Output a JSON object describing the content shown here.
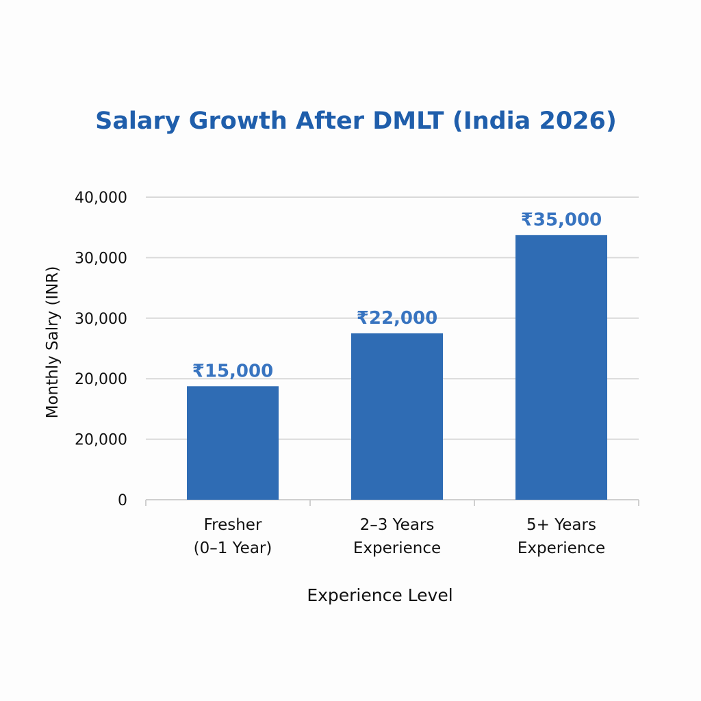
{
  "chart_data": {
    "type": "bar",
    "title": "Salary Growth After DMLT (India 2026)",
    "xlabel": "Experience Level",
    "ylabel": "Monthly Salry (INR)",
    "categories": [
      [
        "Fresher",
        "(0–1 Year)"
      ],
      [
        "2–3 Years",
        "Experience"
      ],
      [
        "5+ Years",
        "Experience"
      ]
    ],
    "values": [
      15000,
      22000,
      35000
    ],
    "data_labels": [
      "₹15,000",
      "₹22,000",
      "₹35,000"
    ],
    "ytick_labels": [
      "0",
      "20,000",
      "20,000",
      "30,000",
      "30,000",
      "40,000"
    ],
    "ylim": [
      0,
      40000
    ],
    "grid": true,
    "colors": {
      "bar": "#2f6cb4",
      "title": "#1f5eab",
      "data_label": "#3874c0",
      "grid": "#d9d9d9"
    }
  }
}
